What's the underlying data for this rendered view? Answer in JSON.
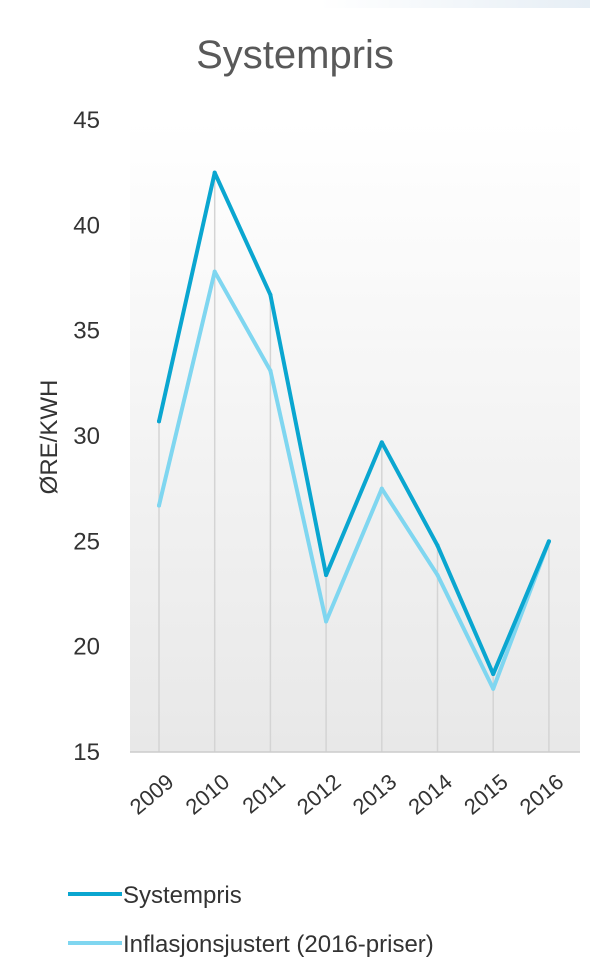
{
  "chart_data": {
    "type": "line",
    "title": "Systempris",
    "xlabel": "",
    "ylabel": "ØRE/KWH",
    "categories": [
      "2009",
      "2010",
      "2011",
      "2012",
      "2013",
      "2014",
      "2015",
      "2016"
    ],
    "yticks": [
      "15",
      "20",
      "25",
      "30",
      "35",
      "40",
      "45"
    ],
    "ylim": [
      15,
      45
    ],
    "grid": "vertical",
    "legend_position": "bottom",
    "series": [
      {
        "name": "Systempris",
        "color": "#0aa6d0",
        "values": [
          30.7,
          42.5,
          36.7,
          23.4,
          29.7,
          24.8,
          18.7,
          25.0
        ]
      },
      {
        "name": "Inflasjonsjustert (2016-priser)",
        "color": "#7fd6f0",
        "values": [
          26.7,
          37.8,
          33.1,
          21.2,
          27.5,
          23.4,
          18.0,
          25.0
        ]
      }
    ]
  }
}
